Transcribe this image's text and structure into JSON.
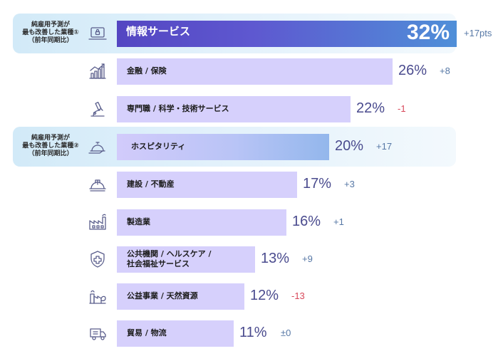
{
  "chart_data": {
    "type": "bar",
    "orientation": "horizontal",
    "highlight_labels": [
      "純雇用予測が\n最も改善した業種①\n（前年同期比）",
      "純雇用予測が\n最も改善した業種②\n（前年同期比）"
    ],
    "categories": [
      {
        "name": "情報サービス",
        "value": 32,
        "value_label": "32%",
        "change": "+17pts",
        "change_sign": "pos",
        "icon": "laptop-lock-icon",
        "highlight": 1
      },
      {
        "name": "金融 / 保険",
        "value": 26,
        "value_label": "26%",
        "change": "+8",
        "change_sign": "pos",
        "icon": "finance-chart-icon",
        "highlight": 0
      },
      {
        "name": "専門職 / 科学・技術サービス",
        "value": 22,
        "value_label": "22%",
        "change": "-1",
        "change_sign": "neg",
        "icon": "microscope-icon",
        "highlight": 0
      },
      {
        "name": "ホスピタリティ",
        "value": 20,
        "value_label": "20%",
        "change": "+17",
        "change_sign": "pos",
        "icon": "service-bell-icon",
        "highlight": 2
      },
      {
        "name": "建設 / 不動産",
        "value": 17,
        "value_label": "17%",
        "change": "+3",
        "change_sign": "pos",
        "icon": "hard-hat-icon",
        "highlight": 0
      },
      {
        "name": "製造業",
        "value": 16,
        "value_label": "16%",
        "change": "+1",
        "change_sign": "pos",
        "icon": "factory-icon",
        "highlight": 0
      },
      {
        "name": "公共機関 / ヘルスケア /\n社会福祉サービス",
        "value": 13,
        "value_label": "13%",
        "change": "+9",
        "change_sign": "pos",
        "icon": "medical-shield-icon",
        "highlight": 0
      },
      {
        "name": "公益事業 / 天然資源",
        "value": 12,
        "value_label": "12%",
        "change": "-13",
        "change_sign": "neg",
        "icon": "utility-plant-icon",
        "highlight": 0
      },
      {
        "name": "貿易 / 物流",
        "value": 11,
        "value_label": "11%",
        "change": "±0",
        "change_sign": "zero",
        "icon": "delivery-truck-icon",
        "highlight": 0
      }
    ],
    "colors": {
      "bar": "#d6d0fc",
      "top_bar_start": "#5446c2",
      "top_bar_end": "#4f8fd8",
      "value_text": "#4a4b8e",
      "change_positive": "#5778a6",
      "change_negative": "#d8485a",
      "highlight_band": "#d2eaf8"
    }
  }
}
